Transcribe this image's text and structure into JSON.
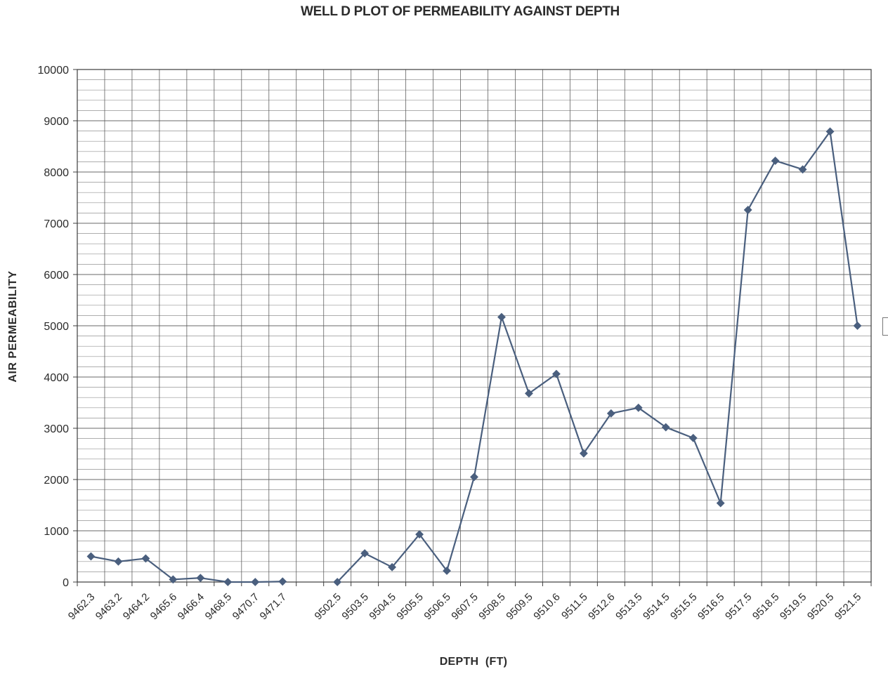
{
  "chart_data": {
    "type": "line",
    "title": "WELL D PLOT OF PERMEABILITY AGAINST DEPTH",
    "xlabel": "DEPTH  (FT)",
    "ylabel": "AIR PERMEABILITY",
    "ylim": [
      0,
      10000
    ],
    "yticks": [
      0,
      1000,
      2000,
      3000,
      4000,
      5000,
      6000,
      7000,
      8000,
      9000,
      10000
    ],
    "grid": true,
    "legend": "none",
    "categories": [
      "9462.3",
      "9463.2",
      "9464.2",
      "9465.6",
      "9466.4",
      "9468.5",
      "9470.7",
      "9471.7",
      "",
      "9502.5",
      "9503.5",
      "9504.5",
      "9505.5",
      "9506.5",
      "9607.5",
      "9508.5",
      "9509.5",
      "9510.6",
      "9511.5",
      "9512.6",
      "9513.5",
      "9514.5",
      "9515.5",
      "9516.5",
      "9517.5",
      "9518.5",
      "9519.5",
      "9520.5",
      "9521.5"
    ],
    "series": [
      {
        "values": [
          500,
          400,
          460,
          50,
          80,
          0,
          0,
          10,
          null,
          0,
          560,
          290,
          930,
          220,
          2050,
          5170,
          3680,
          4060,
          2510,
          3290,
          3400,
          3020,
          2810,
          1540,
          7260,
          8220,
          8050,
          8790,
          5000
        ],
        "color": "#4a5f7e",
        "marker": "diamond"
      }
    ],
    "colors": {
      "grid": "#5a5a5a",
      "line": "#4a5f7e",
      "text": "#2b2b2b"
    }
  }
}
